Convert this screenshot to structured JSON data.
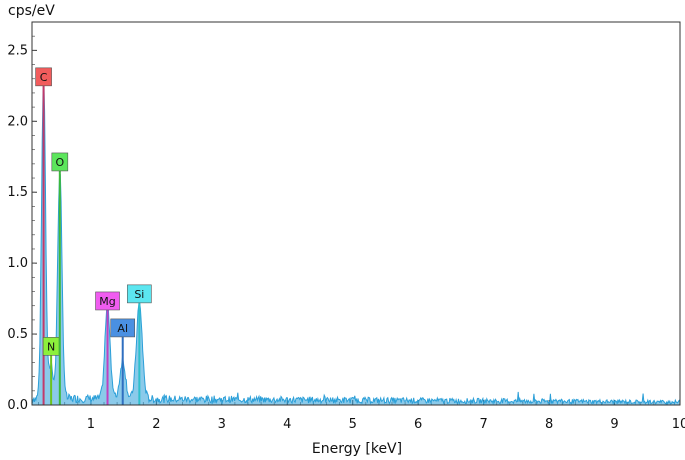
{
  "chart_data": {
    "type": "line",
    "xlabel": "Energy [keV]",
    "ylabel": "cps/eV",
    "xlim": [
      0.1,
      10
    ],
    "ylim": [
      0,
      2.7
    ],
    "x_ticks": [
      "1",
      "2",
      "3",
      "4",
      "5",
      "6",
      "7",
      "8",
      "9",
      "10"
    ],
    "y_ticks": [
      "0.0",
      "0.5",
      "1.0",
      "1.5",
      "2.0",
      "2.5"
    ],
    "grid": false,
    "series": [
      {
        "color": "#2b9fd8",
        "peaks": [
          {
            "x": 0.277,
            "y": 2.25
          },
          {
            "x": 0.392,
            "y": 0.24
          },
          {
            "x": 0.525,
            "y": 1.6
          },
          {
            "x": 1.254,
            "y": 0.65
          },
          {
            "x": 1.486,
            "y": 0.27
          },
          {
            "x": 1.74,
            "y": 0.67
          }
        ],
        "background_level": 0.04
      }
    ],
    "element_markers": [
      {
        "label": "C",
        "energy": 0.277,
        "height": 2.25,
        "fill": "#f25c5c",
        "line": "#c23a6a"
      },
      {
        "label": "N",
        "energy": 0.392,
        "height": 0.35,
        "fill": "#8cf03c",
        "line": "#6bc41e"
      },
      {
        "label": "O",
        "energy": 0.525,
        "height": 1.65,
        "fill": "#5ce65c",
        "line": "#3cb83c"
      },
      {
        "label": "Mg",
        "energy": 1.254,
        "height": 0.67,
        "fill": "#f05cf0",
        "line": "#c040c0"
      },
      {
        "label": "Al",
        "energy": 1.486,
        "height": 0.48,
        "fill": "#4a90e2",
        "line": "#2f6fc0"
      },
      {
        "label": "Si",
        "energy": 1.74,
        "height": 0.72,
        "fill": "#5ce6f0",
        "line": "#2ec0cc"
      }
    ]
  }
}
